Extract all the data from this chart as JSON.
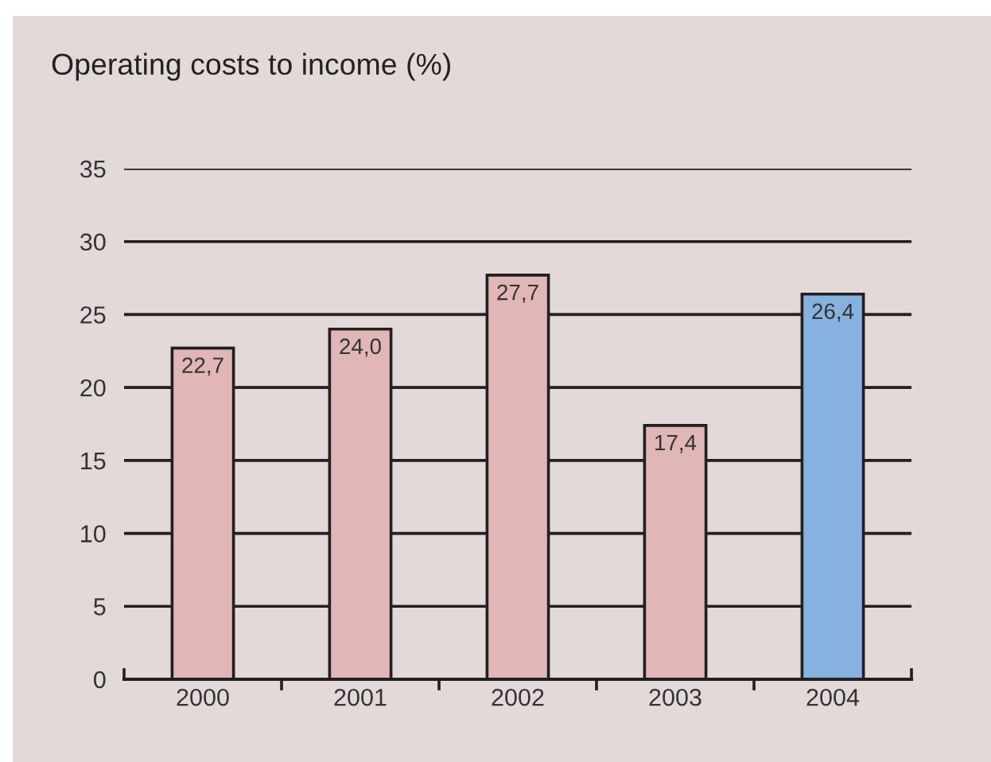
{
  "chart_data": {
    "type": "bar",
    "title": "Operating costs to income (%)",
    "categories": [
      "2000",
      "2001",
      "2002",
      "2003",
      "2004"
    ],
    "values": [
      22.7,
      24.0,
      27.7,
      17.4,
      26.4
    ],
    "colors": [
      "#e0b6b6",
      "#e0b6b6",
      "#e0b6b6",
      "#e0b6b6",
      "#87b1de"
    ],
    "value_labels": [
      "22,7",
      "24,0",
      "27,7",
      "17,4",
      "26,4"
    ],
    "ylim": [
      0,
      35
    ],
    "yticks": [
      0,
      5,
      10,
      15,
      20,
      25,
      30,
      35
    ],
    "grid": "y"
  }
}
